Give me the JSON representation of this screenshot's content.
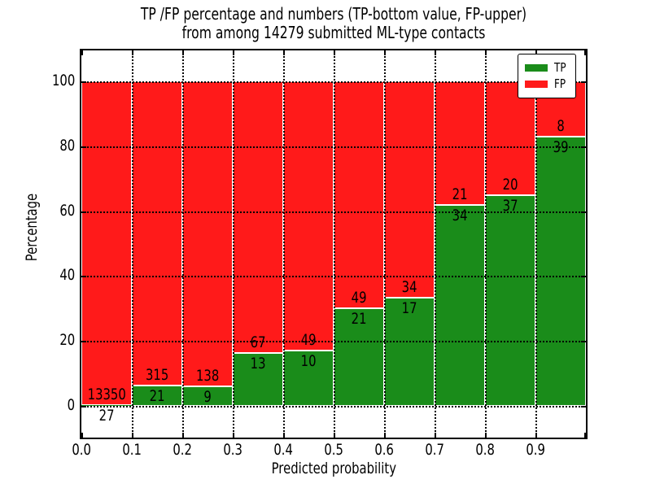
{
  "title": {
    "line1": "TP /FP percentage and numbers (TP-bottom value, FP-upper)",
    "line2": "from among 14279 submitted ML-type contacts"
  },
  "chart_data": {
    "type": "bar",
    "stacked": true,
    "normalized": "each bar scaled to 100%",
    "title": "TP /FP percentage and numbers (TP-bottom value, FP-upper) from among 14279 submitted ML-type contacts",
    "xlabel": "Predicted probability",
    "ylabel": "Percentage",
    "categories": [
      "0.0-0.1",
      "0.1-0.2",
      "0.2-0.3",
      "0.3-0.4",
      "0.4-0.5",
      "0.5-0.6",
      "0.6-0.7",
      "0.7-0.8",
      "0.8-0.9",
      "0.9-1.0"
    ],
    "series": [
      {
        "name": "TP",
        "color": "#1a8c1a",
        "counts": [
          27,
          21,
          9,
          13,
          10,
          21,
          17,
          34,
          37,
          39
        ]
      },
      {
        "name": "FP",
        "color": "#ff1a1a",
        "counts": [
          13350,
          315,
          138,
          67,
          49,
          49,
          34,
          21,
          20,
          8
        ]
      }
    ],
    "tp_percent_of_bar": [
      0.2,
      6.25,
      6.12,
      16.25,
      16.95,
      30.0,
      33.33,
      61.82,
      64.91,
      82.98
    ],
    "x_ticks": [
      "0.0",
      "0.1",
      "0.2",
      "0.3",
      "0.4",
      "0.5",
      "0.6",
      "0.7",
      "0.8",
      "0.9"
    ],
    "y_ticks": [
      0,
      20,
      40,
      60,
      80,
      100
    ],
    "xlim": [
      0.0,
      1.0
    ],
    "ylim": [
      -10,
      110
    ],
    "grid": "dotted black, on",
    "bar_edge_color": "#ffffff",
    "legend_position": "upper right"
  },
  "legend": {
    "items": [
      {
        "label": "TP",
        "color": "#1a8c1a"
      },
      {
        "label": "FP",
        "color": "#ff1a1a"
      }
    ]
  }
}
